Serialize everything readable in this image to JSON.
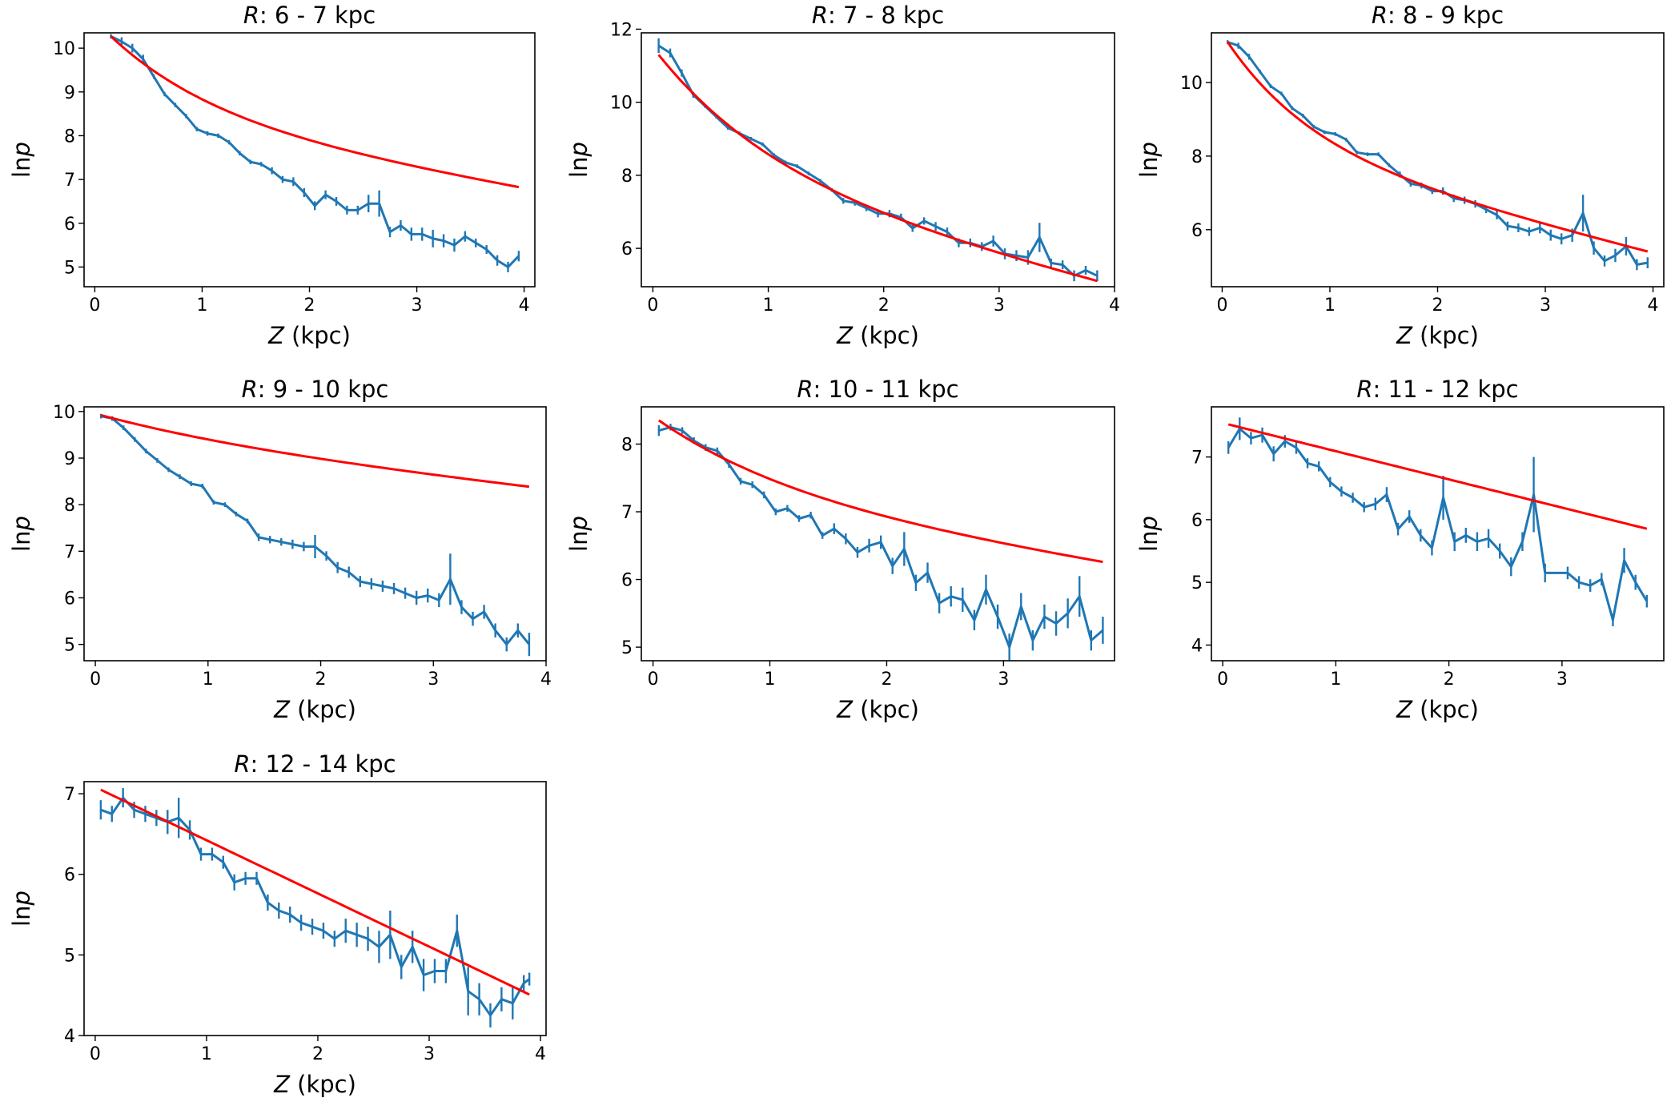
{
  "chart_data": [
    {
      "type": "line",
      "title": "R: 6 - 7 kpc",
      "title_var": "R",
      "title_rest": ": 6 - 7 kpc",
      "xlabel_var": "Z",
      "xlabel_rest": " (kpc)",
      "ylabel": "lnp",
      "xlim": [
        -0.1,
        4.1
      ],
      "ylim": [
        4.55,
        10.35
      ],
      "xticks": [
        0,
        1,
        2,
        3,
        4
      ],
      "yticks": [
        5,
        6,
        7,
        8,
        9,
        10
      ],
      "fit": {
        "z0": 0.15,
        "y0": 10.27,
        "a": 1.89,
        "b": 0.625,
        "c": 7.0
      },
      "series": [
        {
          "name": "lnp",
          "color": "#1f77b4",
          "x": [
            0.15,
            0.25,
            0.35,
            0.45,
            0.55,
            0.65,
            0.75,
            0.85,
            0.95,
            1.05,
            1.15,
            1.25,
            1.35,
            1.45,
            1.55,
            1.65,
            1.75,
            1.85,
            1.95,
            2.05,
            2.15,
            2.25,
            2.35,
            2.45,
            2.55,
            2.65,
            2.75,
            2.85,
            2.95,
            3.05,
            3.15,
            3.25,
            3.35,
            3.45,
            3.55,
            3.65,
            3.75,
            3.85,
            3.95
          ],
          "y": [
            10.27,
            10.15,
            10.0,
            9.75,
            9.35,
            8.95,
            8.7,
            8.45,
            8.15,
            8.05,
            8.0,
            7.85,
            7.6,
            7.4,
            7.35,
            7.2,
            7.0,
            6.95,
            6.7,
            6.4,
            6.65,
            6.5,
            6.3,
            6.3,
            6.45,
            6.45,
            5.8,
            5.95,
            5.75,
            5.75,
            5.65,
            5.6,
            5.5,
            5.7,
            5.55,
            5.4,
            5.15,
            5.0,
            5.25
          ],
          "err": [
            0.05,
            0.1,
            0.1,
            0.1,
            0.05,
            0.05,
            0.05,
            0.05,
            0.05,
            0.05,
            0.05,
            0.05,
            0.05,
            0.05,
            0.05,
            0.08,
            0.08,
            0.1,
            0.1,
            0.1,
            0.1,
            0.1,
            0.1,
            0.1,
            0.2,
            0.3,
            0.12,
            0.12,
            0.15,
            0.15,
            0.2,
            0.15,
            0.15,
            0.12,
            0.1,
            0.1,
            0.12,
            0.12,
            0.12
          ]
        }
      ]
    },
    {
      "type": "line",
      "title": "R: 7 - 8 kpc",
      "title_var": "R",
      "title_rest": ": 7 - 8 kpc",
      "xlabel_var": "Z",
      "xlabel_rest": " (kpc)",
      "ylabel": "lnp",
      "xlim": [
        -0.1,
        4.0
      ],
      "ylim": [
        4.95,
        11.9
      ],
      "xticks": [
        0,
        1,
        2,
        3,
        4
      ],
      "yticks": [
        6,
        8,
        10,
        12
      ],
      "fit": {
        "z0": 0.05,
        "y0": 11.3,
        "a": 3.34,
        "b": 0.595,
        "c": 12.9
      },
      "series": [
        {
          "name": "lnp",
          "color": "#1f77b4",
          "x": [
            0.05,
            0.15,
            0.25,
            0.35,
            0.45,
            0.55,
            0.65,
            0.75,
            0.85,
            0.95,
            1.05,
            1.15,
            1.25,
            1.35,
            1.45,
            1.55,
            1.65,
            1.75,
            1.85,
            1.95,
            2.05,
            2.15,
            2.25,
            2.35,
            2.45,
            2.55,
            2.65,
            2.75,
            2.85,
            2.95,
            3.05,
            3.15,
            3.25,
            3.35,
            3.45,
            3.55,
            3.65,
            3.75,
            3.85
          ],
          "y": [
            11.55,
            11.35,
            10.8,
            10.2,
            9.9,
            9.6,
            9.3,
            9.15,
            9.0,
            8.85,
            8.55,
            8.35,
            8.25,
            8.05,
            7.85,
            7.6,
            7.3,
            7.25,
            7.1,
            6.95,
            6.95,
            6.85,
            6.55,
            6.75,
            6.6,
            6.45,
            6.15,
            6.15,
            6.05,
            6.2,
            5.85,
            5.8,
            5.75,
            6.3,
            5.6,
            5.55,
            5.25,
            5.4,
            5.25
          ],
          "err": [
            0.2,
            0.12,
            0.1,
            0.08,
            0.05,
            0.05,
            0.05,
            0.05,
            0.05,
            0.05,
            0.05,
            0.05,
            0.05,
            0.05,
            0.05,
            0.05,
            0.08,
            0.08,
            0.08,
            0.1,
            0.1,
            0.1,
            0.1,
            0.1,
            0.12,
            0.12,
            0.12,
            0.12,
            0.12,
            0.15,
            0.15,
            0.15,
            0.2,
            0.4,
            0.12,
            0.12,
            0.15,
            0.12,
            0.15
          ]
        }
      ]
    },
    {
      "type": "line",
      "title": "R: 8 - 9 kpc",
      "title_var": "R",
      "title_rest": ": 8 - 9 kpc",
      "xlabel_var": "Z",
      "xlabel_rest": " (kpc)",
      "ylabel": "lnp",
      "xlim": [
        -0.1,
        4.1
      ],
      "ylim": [
        4.45,
        11.35
      ],
      "xticks": [
        0,
        1,
        2,
        3,
        4
      ],
      "yticks": [
        6,
        8,
        10
      ],
      "fit": {
        "z0": 0.05,
        "y0": 11.1,
        "a": 2.84,
        "b": 0.79,
        "c": 12.28
      },
      "series": [
        {
          "name": "lnp",
          "color": "#1f77b4",
          "x": [
            0.05,
            0.15,
            0.25,
            0.35,
            0.45,
            0.55,
            0.65,
            0.75,
            0.85,
            0.95,
            1.05,
            1.15,
            1.25,
            1.35,
            1.45,
            1.55,
            1.65,
            1.75,
            1.85,
            1.95,
            2.05,
            2.15,
            2.25,
            2.35,
            2.45,
            2.55,
            2.65,
            2.75,
            2.85,
            2.95,
            3.05,
            3.15,
            3.25,
            3.35,
            3.45,
            3.55,
            3.65,
            3.75,
            3.85,
            3.95
          ],
          "y": [
            11.1,
            11.0,
            10.7,
            10.3,
            9.9,
            9.7,
            9.3,
            9.1,
            8.8,
            8.65,
            8.6,
            8.45,
            8.1,
            8.05,
            8.05,
            7.75,
            7.5,
            7.25,
            7.2,
            7.05,
            7.05,
            6.85,
            6.8,
            6.7,
            6.55,
            6.4,
            6.1,
            6.05,
            5.95,
            6.05,
            5.85,
            5.75,
            5.85,
            6.45,
            5.5,
            5.15,
            5.3,
            5.55,
            5.05,
            5.1
          ],
          "err": [
            0.05,
            0.08,
            0.08,
            0.05,
            0.05,
            0.05,
            0.05,
            0.05,
            0.05,
            0.05,
            0.05,
            0.05,
            0.05,
            0.05,
            0.05,
            0.05,
            0.08,
            0.08,
            0.08,
            0.08,
            0.1,
            0.1,
            0.1,
            0.1,
            0.1,
            0.12,
            0.12,
            0.12,
            0.12,
            0.15,
            0.15,
            0.15,
            0.18,
            0.5,
            0.18,
            0.15,
            0.18,
            0.25,
            0.15,
            0.15
          ]
        }
      ]
    },
    {
      "type": "line",
      "title": "R: 9 - 10 kpc",
      "title_var": "R",
      "title_rest": ": 9 - 10 kpc",
      "xlabel_var": "Z",
      "xlabel_rest": " (kpc)",
      "ylabel": "lnp",
      "xlim": [
        -0.1,
        4.0
      ],
      "ylim": [
        4.65,
        10.1
      ],
      "xticks": [
        0,
        1,
        2,
        3,
        4
      ],
      "yticks": [
        5,
        6,
        7,
        8,
        9,
        10
      ],
      "fit": {
        "z0": 0.05,
        "y0": 9.92,
        "a": 0.6,
        "b": 0.4,
        "c": 4.33
      },
      "series": [
        {
          "name": "lnp",
          "color": "#1f77b4",
          "x": [
            0.05,
            0.15,
            0.25,
            0.35,
            0.45,
            0.55,
            0.65,
            0.75,
            0.85,
            0.95,
            1.05,
            1.15,
            1.25,
            1.35,
            1.45,
            1.55,
            1.65,
            1.75,
            1.85,
            1.95,
            2.05,
            2.15,
            2.25,
            2.35,
            2.45,
            2.55,
            2.65,
            2.75,
            2.85,
            2.95,
            3.05,
            3.15,
            3.25,
            3.35,
            3.45,
            3.55,
            3.65,
            3.75,
            3.85
          ],
          "y": [
            9.9,
            9.85,
            9.65,
            9.4,
            9.15,
            8.95,
            8.75,
            8.6,
            8.45,
            8.4,
            8.05,
            8.0,
            7.8,
            7.65,
            7.3,
            7.25,
            7.2,
            7.15,
            7.1,
            7.1,
            6.9,
            6.65,
            6.55,
            6.35,
            6.3,
            6.25,
            6.2,
            6.1,
            6.0,
            6.05,
            5.95,
            6.4,
            5.8,
            5.55,
            5.7,
            5.3,
            5.0,
            5.3,
            5.0
          ],
          "err": [
            0.05,
            0.05,
            0.05,
            0.05,
            0.05,
            0.05,
            0.05,
            0.05,
            0.05,
            0.05,
            0.05,
            0.05,
            0.05,
            0.05,
            0.08,
            0.08,
            0.08,
            0.1,
            0.1,
            0.25,
            0.1,
            0.12,
            0.12,
            0.12,
            0.12,
            0.12,
            0.12,
            0.12,
            0.15,
            0.15,
            0.15,
            0.55,
            0.15,
            0.15,
            0.15,
            0.15,
            0.15,
            0.15,
            0.25
          ]
        }
      ]
    },
    {
      "type": "line",
      "title": "R: 10 - 11 kpc",
      "title_var": "R",
      "title_rest": ": 10 - 11 kpc",
      "xlabel_var": "Z",
      "xlabel_rest": " (kpc)",
      "ylabel": "lnp",
      "xlim": [
        -0.1,
        3.95
      ],
      "ylim": [
        4.8,
        8.55
      ],
      "xticks": [
        0,
        1,
        2,
        3
      ],
      "yticks": [
        5,
        6,
        7,
        8
      ],
      "fit": {
        "z0": 0.05,
        "y0": 8.35,
        "a": 1.13,
        "b": 0.515,
        "c": 4.43
      },
      "series": [
        {
          "name": "lnp",
          "color": "#1f77b4",
          "x": [
            0.05,
            0.15,
            0.25,
            0.35,
            0.45,
            0.55,
            0.65,
            0.75,
            0.85,
            0.95,
            1.05,
            1.15,
            1.25,
            1.35,
            1.45,
            1.55,
            1.65,
            1.75,
            1.85,
            1.95,
            2.05,
            2.15,
            2.25,
            2.35,
            2.45,
            2.55,
            2.65,
            2.75,
            2.85,
            2.95,
            3.05,
            3.15,
            3.25,
            3.35,
            3.45,
            3.55,
            3.65,
            3.75,
            3.85
          ],
          "y": [
            8.2,
            8.25,
            8.2,
            8.05,
            7.95,
            7.9,
            7.7,
            7.45,
            7.4,
            7.25,
            7.0,
            7.05,
            6.9,
            6.95,
            6.65,
            6.75,
            6.6,
            6.4,
            6.5,
            6.55,
            6.2,
            6.45,
            5.95,
            6.1,
            5.65,
            5.75,
            5.7,
            5.4,
            5.85,
            5.45,
            5.0,
            5.6,
            5.1,
            5.45,
            5.35,
            5.5,
            5.75,
            5.1,
            5.25
          ],
          "err": [
            0.08,
            0.05,
            0.05,
            0.05,
            0.05,
            0.05,
            0.05,
            0.05,
            0.05,
            0.05,
            0.05,
            0.05,
            0.05,
            0.05,
            0.05,
            0.08,
            0.08,
            0.08,
            0.1,
            0.1,
            0.12,
            0.25,
            0.12,
            0.15,
            0.15,
            0.15,
            0.18,
            0.15,
            0.22,
            0.18,
            0.2,
            0.2,
            0.15,
            0.18,
            0.18,
            0.22,
            0.3,
            0.15,
            0.2
          ]
        }
      ]
    },
    {
      "type": "line",
      "title": "R: 11 - 12 kpc",
      "title_var": "R",
      "title_rest": ": 11 - 12 kpc",
      "xlabel_var": "Z",
      "xlabel_rest": " (kpc)",
      "ylabel": "lnp",
      "xlim": [
        -0.1,
        3.9
      ],
      "ylim": [
        3.75,
        7.8
      ],
      "xticks": [
        0,
        1,
        2,
        3
      ],
      "yticks": [
        4,
        5,
        6,
        7
      ],
      "fit": {
        "z0": 0.05,
        "y0": 7.52,
        "a": 0.0,
        "b": 0.0,
        "c": 4.5
      },
      "series": [
        {
          "name": "lnp",
          "color": "#1f77b4",
          "x": [
            0.05,
            0.15,
            0.25,
            0.35,
            0.45,
            0.55,
            0.65,
            0.75,
            0.85,
            0.95,
            1.05,
            1.15,
            1.25,
            1.35,
            1.45,
            1.55,
            1.65,
            1.75,
            1.85,
            1.95,
            2.05,
            2.15,
            2.25,
            2.35,
            2.45,
            2.55,
            2.65,
            2.75,
            2.85,
            3.05,
            3.15,
            3.25,
            3.35,
            3.45,
            3.55,
            3.65,
            3.75
          ],
          "y": [
            7.15,
            7.45,
            7.3,
            7.35,
            7.05,
            7.25,
            7.15,
            6.9,
            6.85,
            6.6,
            6.45,
            6.35,
            6.2,
            6.25,
            6.4,
            5.85,
            6.05,
            5.75,
            5.55,
            6.35,
            5.65,
            5.75,
            5.65,
            5.7,
            5.5,
            5.25,
            5.65,
            6.4,
            5.15,
            5.15,
            5.0,
            4.95,
            5.05,
            4.4,
            5.35,
            5.0,
            4.7
          ],
          "err": [
            0.1,
            0.18,
            0.1,
            0.12,
            0.12,
            0.1,
            0.1,
            0.08,
            0.08,
            0.08,
            0.08,
            0.08,
            0.08,
            0.1,
            0.12,
            0.1,
            0.1,
            0.1,
            0.12,
            0.35,
            0.15,
            0.12,
            0.15,
            0.15,
            0.12,
            0.15,
            0.15,
            0.6,
            0.15,
            0.1,
            0.1,
            0.1,
            0.1,
            0.1,
            0.2,
            0.12,
            0.1
          ]
        }
      ]
    },
    {
      "type": "line",
      "title": "R: 12 - 14 kpc",
      "title_var": "R",
      "title_rest": ": 12 - 14 kpc",
      "xlabel_var": "Z",
      "xlabel_rest": " (kpc)",
      "ylabel": "lnp",
      "xlim": [
        -0.1,
        4.05
      ],
      "ylim": [
        4.0,
        7.15
      ],
      "xticks": [
        0,
        1,
        2,
        3,
        4
      ],
      "yticks": [
        4,
        5,
        6,
        7
      ],
      "fit": {
        "z0": 0.05,
        "y0": 7.05,
        "a": 0.0,
        "b": 0.0,
        "c": 6.6
      },
      "series": [
        {
          "name": "lnp",
          "color": "#1f77b4",
          "x": [
            0.05,
            0.15,
            0.25,
            0.35,
            0.45,
            0.55,
            0.65,
            0.75,
            0.85,
            0.95,
            1.05,
            1.15,
            1.25,
            1.35,
            1.45,
            1.55,
            1.65,
            1.75,
            1.85,
            1.95,
            2.05,
            2.15,
            2.25,
            2.35,
            2.45,
            2.55,
            2.65,
            2.75,
            2.85,
            2.95,
            3.05,
            3.15,
            3.25,
            3.35,
            3.45,
            3.55,
            3.65,
            3.75,
            3.85,
            3.9
          ],
          "y": [
            6.8,
            6.75,
            6.95,
            6.8,
            6.75,
            6.7,
            6.65,
            6.7,
            6.55,
            6.25,
            6.25,
            6.15,
            5.9,
            5.95,
            5.95,
            5.65,
            5.55,
            5.5,
            5.4,
            5.35,
            5.3,
            5.2,
            5.3,
            5.25,
            5.2,
            5.1,
            5.25,
            4.85,
            5.1,
            4.75,
            4.8,
            4.8,
            5.3,
            4.55,
            4.45,
            4.25,
            4.45,
            4.4,
            4.65,
            4.7
          ],
          "err": [
            0.12,
            0.1,
            0.12,
            0.1,
            0.1,
            0.1,
            0.15,
            0.25,
            0.12,
            0.08,
            0.08,
            0.08,
            0.1,
            0.08,
            0.08,
            0.1,
            0.1,
            0.1,
            0.1,
            0.1,
            0.1,
            0.1,
            0.15,
            0.15,
            0.15,
            0.2,
            0.3,
            0.15,
            0.2,
            0.2,
            0.15,
            0.15,
            0.2,
            0.3,
            0.2,
            0.15,
            0.15,
            0.2,
            0.1,
            0.08
          ]
        }
      ]
    }
  ]
}
